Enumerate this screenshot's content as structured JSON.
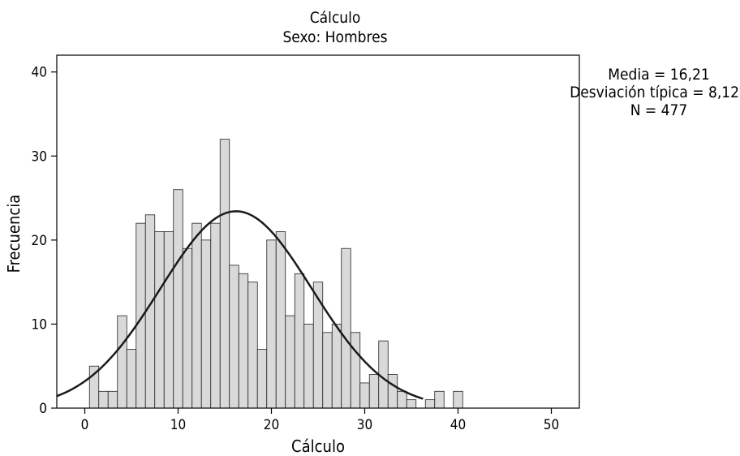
{
  "chart_data": {
    "type": "bar",
    "title": "Cálculo",
    "subtitle": "Sexo: Hombres",
    "xlabel": "Cálculo",
    "ylabel": "Frecuencia",
    "xlim": [
      -3,
      53
    ],
    "ylim": [
      0,
      42
    ],
    "xticks": [
      "0",
      "10",
      "20",
      "30",
      "40",
      "50"
    ],
    "yticks": [
      "0",
      "10",
      "20",
      "30",
      "40"
    ],
    "bin_width": 1,
    "bins": [
      {
        "x": 1,
        "value": 5
      },
      {
        "x": 2,
        "value": 2
      },
      {
        "x": 3,
        "value": 2
      },
      {
        "x": 4,
        "value": 11
      },
      {
        "x": 5,
        "value": 7
      },
      {
        "x": 6,
        "value": 22
      },
      {
        "x": 7,
        "value": 23
      },
      {
        "x": 8,
        "value": 21
      },
      {
        "x": 9,
        "value": 21
      },
      {
        "x": 10,
        "value": 26
      },
      {
        "x": 11,
        "value": 19
      },
      {
        "x": 12,
        "value": 22
      },
      {
        "x": 13,
        "value": 20
      },
      {
        "x": 14,
        "value": 22
      },
      {
        "x": 15,
        "value": 32
      },
      {
        "x": 16,
        "value": 17
      },
      {
        "x": 17,
        "value": 16
      },
      {
        "x": 18,
        "value": 15
      },
      {
        "x": 19,
        "value": 7
      },
      {
        "x": 20,
        "value": 20
      },
      {
        "x": 21,
        "value": 21
      },
      {
        "x": 22,
        "value": 11
      },
      {
        "x": 23,
        "value": 16
      },
      {
        "x": 24,
        "value": 10
      },
      {
        "x": 25,
        "value": 15
      },
      {
        "x": 26,
        "value": 9
      },
      {
        "x": 27,
        "value": 10
      },
      {
        "x": 28,
        "value": 19
      },
      {
        "x": 29,
        "value": 9
      },
      {
        "x": 30,
        "value": 3
      },
      {
        "x": 31,
        "value": 4
      },
      {
        "x": 32,
        "value": 8
      },
      {
        "x": 33,
        "value": 4
      },
      {
        "x": 34,
        "value": 2
      },
      {
        "x": 35,
        "value": 1
      },
      {
        "x": 37,
        "value": 1
      },
      {
        "x": 38,
        "value": 2
      },
      {
        "x": 40,
        "value": 2
      }
    ],
    "normal_curve": {
      "mean": 16.21,
      "std": 8.123,
      "n": 477
    },
    "stats": {
      "mean_label": "Media = 16,21",
      "std_label": "Desviación típica = 8,123",
      "n_label": "N = 477"
    },
    "colors": {
      "bar_fill": "#d9d9d9",
      "bar_stroke": "#222222",
      "curve": "#1a1a1a",
      "axis": "#000000"
    },
    "grid": false
  }
}
